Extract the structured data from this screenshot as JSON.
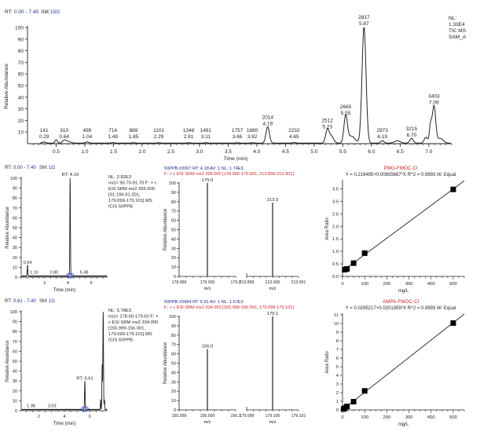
{
  "chart_data": [
    {
      "id": "tic",
      "type": "line",
      "header": {
        "rt_label": "RT:",
        "rt_range": "0.00 - 7.40",
        "sm_label": "SM:",
        "sm_value": "15G"
      },
      "info": [
        "NL:",
        "1.33E4",
        "TIC  MS",
        "SAM_A"
      ],
      "xlabel": "Time (min)",
      "ylabel": "Relative Abundance",
      "xlim": [
        0.0,
        7.4
      ],
      "ylim": [
        0,
        100
      ],
      "xticks": [
        "0.5",
        "1.0",
        "1.5",
        "2.0",
        "2.5",
        "3.0",
        "3.5",
        "4.0",
        "4.5",
        "5.0",
        "5.5",
        "6.0",
        "6.5",
        "7.0"
      ],
      "yticks": [
        "10",
        "20",
        "30",
        "40",
        "50",
        "60",
        "70",
        "80",
        "90",
        "100"
      ],
      "peaks": [
        {
          "scan": "141",
          "rt": "0.29",
          "x": 0.29,
          "y": 1
        },
        {
          "scan": "310",
          "rt": "0.64",
          "x": 0.64,
          "y": 2
        },
        {
          "scan": "499",
          "rt": "1.04",
          "x": 1.04,
          "y": 1
        },
        {
          "scan": "714",
          "rt": "1.49",
          "x": 1.49,
          "y": 0.5
        },
        {
          "scan": "889",
          "rt": "1.85",
          "x": 1.85,
          "y": 0.3
        },
        {
          "scan": "1101",
          "rt": "2.29",
          "x": 2.29,
          "y": 0.3
        },
        {
          "scan": "1348",
          "rt": "2.81",
          "x": 2.81,
          "y": 0.3
        },
        {
          "scan": "1491",
          "rt": "3.11",
          "x": 3.11,
          "y": 0.3
        },
        {
          "scan": "1757",
          "rt": "3.66",
          "x": 3.66,
          "y": 0.3
        },
        {
          "scan": "1880",
          "rt": "3.92",
          "x": 3.92,
          "y": 0.3
        },
        {
          "scan": "2014",
          "rt": "4.19",
          "x": 4.19,
          "y": 14
        },
        {
          "scan": "2232",
          "rt": "4.65",
          "x": 4.65,
          "y": 0.5
        },
        {
          "scan": "2512",
          "rt": "5.23",
          "x": 5.23,
          "y": 11
        },
        {
          "scan": "2665",
          "rt": "5.55",
          "x": 5.55,
          "y": 23
        },
        {
          "scan": "2817",
          "rt": "5.87",
          "x": 5.87,
          "y": 100
        },
        {
          "scan": "2973",
          "rt": "6.19",
          "x": 6.19,
          "y": 2
        },
        {
          "scan": "3215",
          "rt": "6.70",
          "x": 6.7,
          "y": 4
        },
        {
          "scan": "3403",
          "rt": "7.09",
          "x": 7.09,
          "y": 32
        }
      ]
    },
    {
      "id": "pmg-chromatogram",
      "type": "line",
      "header": {
        "rt_label": "RT:",
        "rt_range": "0.00 - 7.40",
        "sm_label": "SM:",
        "sm_value": "1G"
      },
      "info": [
        "NL: 2.82E3",
        "m/z= 90.70-91.70 F: + c",
        "ESI SRM ms2 395.000",
        "[91.199-91.201,",
        "179.099-179.101]  MS",
        "ICIS 50PPB"
      ],
      "xlabel": "Time (min)",
      "ylabel": "Relative Abundance",
      "xlim": [
        0,
        7.4
      ],
      "ylim": [
        0,
        100
      ],
      "xticks": [
        "2",
        "4",
        "6"
      ],
      "yticks": [
        "0",
        "10",
        "20",
        "30",
        "40",
        "50",
        "60",
        "70",
        "80",
        "90",
        "100"
      ],
      "peak_label": "RT: 4.19",
      "minor_labels": [
        {
          "text": "0.54",
          "x": 0.54,
          "y": 12
        },
        {
          "text": "1.10",
          "x": 1.1,
          "y": 2
        },
        {
          "text": "2.80",
          "x": 2.8,
          "y": 2
        },
        {
          "text": "5.38",
          "x": 5.38,
          "y": 2
        }
      ],
      "peaks": [
        {
          "x": 4.19,
          "y": 100
        },
        {
          "x": 0.54,
          "y": 11
        }
      ]
    },
    {
      "id": "pmg-spectrum",
      "type": "bar",
      "header_line1": "50PPB #2007  RT: 4.18  AV: 1  NL: 1.74E3",
      "header_line2": "F: + c ESI SRM ms2 395.000 [178.999-179.001, 213.899-213.901]",
      "xlabel": "m/z",
      "ylabel": "Relative Abundance",
      "ylim": [
        0,
        100
      ],
      "yticks": [
        "0",
        "10",
        "20",
        "30",
        "40",
        "50",
        "60",
        "70",
        "80",
        "90",
        "100"
      ],
      "segments": [
        {
          "ticks": [
            "178.999",
            "179.000",
            "179.0"
          ],
          "tick_left": "178.999",
          "tick_mid": "179.000",
          "tick_right": "179.0"
        },
        {
          "ticks": [
            "213.899",
            "213.900",
            "213.901"
          ],
          "tick_left": "213.899",
          "tick_mid": "213.900",
          "tick_right": "213.901"
        }
      ],
      "bars": [
        {
          "label": "179.0",
          "value": 100
        },
        {
          "label": "213.9",
          "value": 79
        }
      ]
    },
    {
      "id": "pmg-calibration",
      "type": "scatter",
      "title": "PMG-FMOC-Cl",
      "equation": "Y = 0.216495+0.00655687*X   R^2 = 0.9993   W: Equal",
      "xlabel": "mg/L",
      "ylabel": "Area Ratio",
      "xlim": [
        0,
        550
      ],
      "ylim": [
        0,
        3.8
      ],
      "xticks": [
        "0",
        "100",
        "200",
        "300",
        "400",
        "500"
      ],
      "yticks": [
        "0.0",
        "0.5",
        "1.0",
        "1.5",
        "2.0",
        "2.5",
        "3.0",
        "3.5"
      ],
      "x": [
        10,
        20,
        50,
        100,
        500
      ],
      "y": [
        0.27,
        0.3,
        0.53,
        0.93,
        3.48
      ],
      "fit": {
        "intercept": 0.216495,
        "slope": 0.00655687
      }
    },
    {
      "id": "ampa-chromatogram",
      "type": "line",
      "header": {
        "rt_label": "RT:",
        "rt_range": "0.61 - 7.40",
        "sm_label": "SM:",
        "sm_value": "1G"
      },
      "info": [
        "NL: 5.78E3",
        "m/z= 178.60-179.60 F: +",
        "c ESI SRM ms2 334.000",
        "[155.999-156.001,",
        "179.099-179.101]  MS",
        "ICIS 50PPB"
      ],
      "xlabel": "Time (min)",
      "ylabel": "Relative Abundance",
      "xlim": [
        0.61,
        7.4
      ],
      "ylim": [
        0,
        100
      ],
      "xticks": [
        "2",
        "4",
        "6"
      ],
      "yticks": [
        "0",
        "10",
        "20",
        "30",
        "40",
        "50",
        "60",
        "70",
        "80",
        "90",
        "100"
      ],
      "peak_label": "RT: 5.61",
      "minor_labels": [
        {
          "text": "1.38",
          "x": 1.38,
          "y": 2
        },
        {
          "text": "3.03",
          "x": 3.03,
          "y": 2
        }
      ],
      "peaks": [
        {
          "x": 5.61,
          "y": 29
        },
        {
          "x": 7.05,
          "y": 100
        }
      ]
    },
    {
      "id": "ampa-spectrum",
      "type": "bar",
      "header_line1": "50PPB #2684  RT: 5.61  AV: 1  NL: 1.67E3",
      "header_line2": "F: + c ESI SRM ms2 334.000 [155.999-156.001, 179.099-179.101]",
      "xlabel": "m/z",
      "ylabel": "Relative Abundance",
      "ylim": [
        0,
        100
      ],
      "yticks": [
        "0",
        "10",
        "20",
        "30",
        "40",
        "50",
        "60",
        "70",
        "80",
        "90",
        "100"
      ],
      "segments": [
        {
          "tick_left": "155.999",
          "tick_mid": "156.000",
          "tick_right": "156.1"
        },
        {
          "tick_left": "179.099",
          "tick_mid": "179.100",
          "tick_right": "179.101"
        }
      ],
      "bars": [
        {
          "label": "156.0",
          "value": 65
        },
        {
          "label": "179.1",
          "value": 100
        }
      ]
    },
    {
      "id": "ampa-calibration",
      "type": "scatter",
      "title": "AMPA-FMOC-Cl",
      "equation": "Y = 0.0295217+0.0201355*X   R^2 = 0.9993   W: Equal",
      "xlabel": "mg/L",
      "ylabel": "Area Ratio",
      "xlim": [
        0,
        550
      ],
      "ylim": [
        0,
        11
      ],
      "xticks": [
        "0",
        "100",
        "200",
        "300",
        "400",
        "500"
      ],
      "yticks": [
        "0",
        "1",
        "2",
        "3",
        "4",
        "5",
        "6",
        "7",
        "8",
        "9",
        "10",
        "11"
      ],
      "x": [
        5,
        10,
        20,
        50,
        100,
        500
      ],
      "y": [
        0.1,
        0.2,
        0.4,
        0.95,
        2.2,
        10.05
      ],
      "fit": {
        "intercept": 0.0295217,
        "slope": 0.0201355
      }
    }
  ]
}
